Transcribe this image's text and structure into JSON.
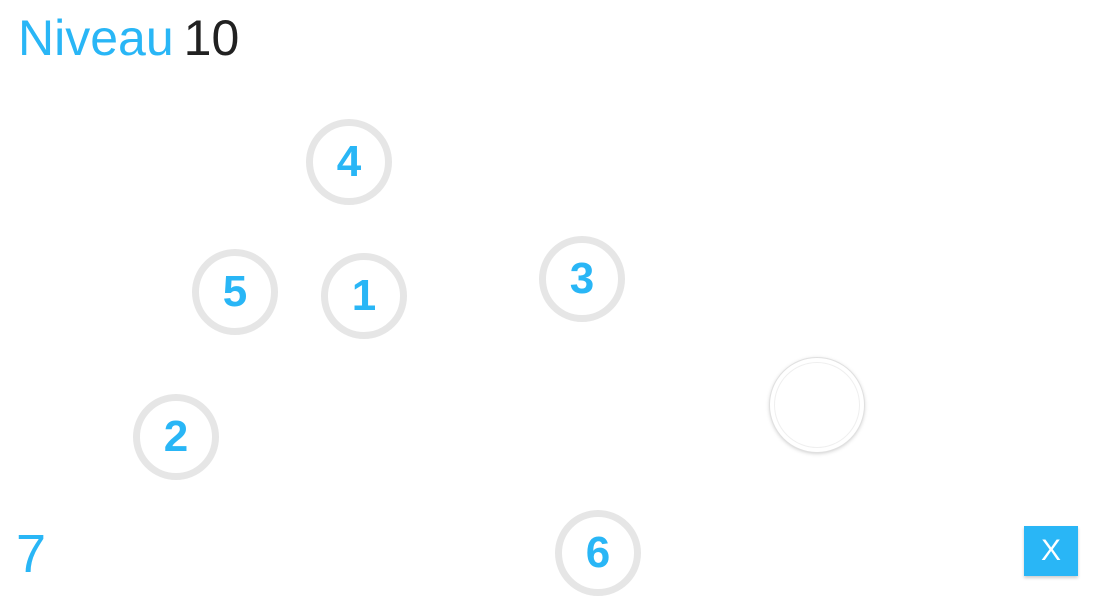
{
  "header": {
    "level_label": "Niveau",
    "level_number": "10"
  },
  "board": {
    "circles": [
      {
        "id": "4",
        "label": "4"
      },
      {
        "id": "5",
        "label": "5"
      },
      {
        "id": "1",
        "label": "1"
      },
      {
        "id": "3",
        "label": "3"
      },
      {
        "id": "2",
        "label": "2"
      },
      {
        "id": "6",
        "label": "6"
      }
    ]
  },
  "footer": {
    "remaining": "7",
    "close_label": "X"
  },
  "colors": {
    "accent": "#29b6f6",
    "circle_border": "#e6e6e6",
    "text_dark": "#212121"
  }
}
